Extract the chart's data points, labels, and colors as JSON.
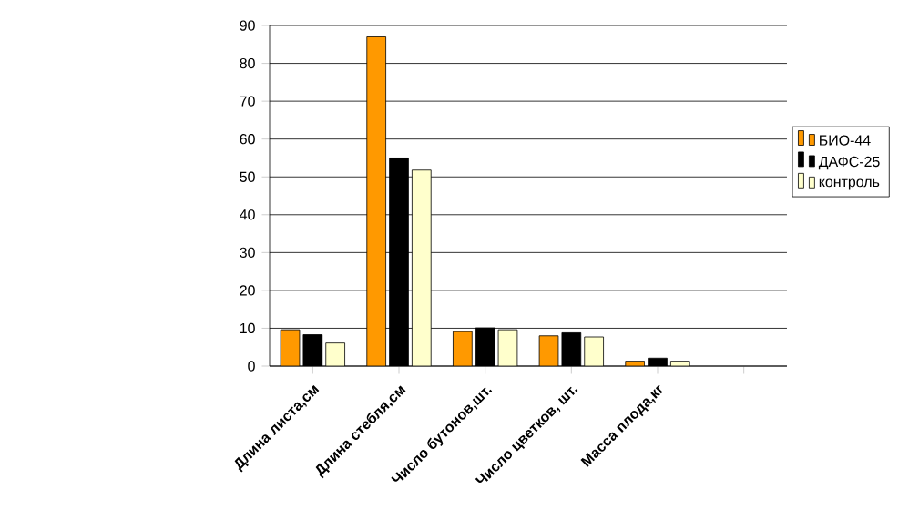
{
  "chart_data": {
    "type": "bar",
    "categories": [
      "Длина листа,см",
      "Длина стебля,см",
      "Число бутонов,шт.",
      "Число цветков, шт.",
      "Масса плода,кг",
      null
    ],
    "series": [
      {
        "name": "БИО-44",
        "color": "#ff9900",
        "values": [
          9.6,
          87,
          9.1,
          8.0,
          1.3,
          null
        ]
      },
      {
        "name": "ДАФС-25",
        "color": "#000000",
        "values": [
          8.3,
          55,
          10.1,
          8.8,
          2.1,
          null
        ]
      },
      {
        "name": "контроль",
        "color": "#ffffcc",
        "values": [
          6.1,
          51.8,
          9.6,
          7.7,
          1.3,
          null
        ]
      }
    ],
    "ylim": [
      0,
      90
    ],
    "yticks": [
      0,
      10,
      20,
      30,
      40,
      50,
      60,
      70,
      80,
      90
    ],
    "grid": "y",
    "legend": "right"
  }
}
